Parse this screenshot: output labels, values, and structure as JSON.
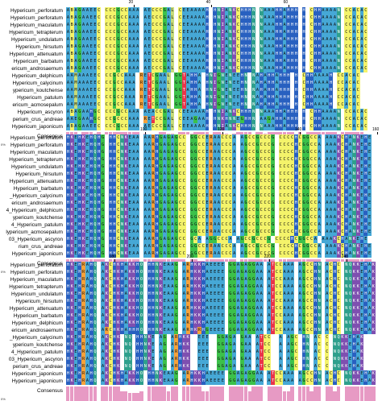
{
  "colors": {
    "A": "#46a8d6",
    "C": "#f4f36a",
    "G": "#3cc14a",
    "T": "#e8344a",
    "H": "#2860c0",
    "K": "#7e4fb0",
    "M": "#c7dc7a",
    "R": "#f6a23b",
    "N": "#2e9f8c",
    "conservation": "#e79ac4"
  },
  "consensus_label": "Consensus",
  "percent_label": "0%",
  "blocks": [
    {
      "ruler": [
        {
          "label": "20",
          "col": 17
        },
        {
          "label": "40",
          "col": 37
        },
        {
          "label": "60",
          "col": 57
        }
      ],
      "names": [
        "Hypericum_perforatum",
        "Hypericum_perforatum",
        "Hypericum_maculatum",
        "Hypericum_tetrapterum",
        "Hypericum_undulatum",
        "Hypericum_hirsutum",
        "Hypericum_attenuatum",
        "Hypericum_barbatum",
        "ericum_androsaemum",
        "Hypericum_delphicum",
        "Hypericum_calycinum",
        "ypericum_koutchense",
        "Hypericum_patulum",
        "ericum_acmosepalum",
        "Hypericum_ascyron",
        "perium_crus_andreae",
        "Hypericum_japonicum"
      ],
      "seqs": [
        "ABAGAAEEC CCCGCCAAA AECCCGAL CEEAAAAH HNIANKCHHHN NAAAHHAHHH H CHHAAAAN CCACAC",
        "ABAGAAEEC CCCGCCAAA AECCCGAL CEEAAAAH HNIANKCHHHN NAAAHHAHHH H CHHAAAAN CCACAC",
        "ABAGAAEEC CCCGCCAAA AECCCGAL CEEAAAAH HNIANKCHHHN NAAAHHAHHH H CHHAAAAN CCACAC",
        "ABAGAAEEC CCCGCCAAA AECCCGAL CEEAAAAH HNIANKCHHHN NAAAHHAHHH H CHHAAAAN CCACAC",
        "ABAGAAEEC CCCGCCAAA AECCCGAL CEEAAAAH HNIANKCHHHN NAAAHHAHHH H CHHAAAAN CCACAC",
        "ABAGAAEEC CCCGCCAAA AECCCGAL CEEAAAAH HNIANKCHHHN NAAAHHAHHH H CHHAAAAN CCACAC",
        "ABAGAAEEC CCCGCCAAA AECCCGAL CEEAAAAH HNIANKCHHHN NAAAHHAHHH H CHHAAAAN CCACAC",
        "ABAGAAEEC CCCGCCAAA AECCCGAL CEEAAAAH HNIANKCHHHN NAAAHHAHHH H CHHAAAAN CCACAC",
        "ABAGAAEEC CCCGCCAAA AECCCGAL CEEAAAAH HNIANKCHHHN NAAAHHAHHH H CHHAAAAN CCACAC",
        "AAMAAAEEC CCGCCAAA RETCGAAL GGTAHHA HNIGNENEEHN NAHAHHAHHH H CHHAAAAH CCACAC",
        "AAMAAAEEC CCGCCAAA RETCGAAL GGTAHHA HNIGNENEEHN NAHAHHAHHH H CHHAAAAH CCACAC",
        "AAMAAAEEC CCGCCAAA RETCGAAL GGTAHHA HNIGNENEEHN NAHAHHAHHH H CHHAAAAH CCACAC",
        "AAMAAAEEC CCGCCAAA RETCGAAL GGTAHHA HNIGNENEEHN NAHAHHAHHH H CHHAAAAH CCACAC",
        "AAMAAAEEC CCGCCAAA RETCGAAL GGTAHHA HNIGNENEEHN NAHAHHAHHH H CHHAAAAH CCACAC",
        "ABAGAAHGC CCCGCCAAA AEACCGAL CEEAAAAH HNIANKCHHHN NAAAHHAHHH H CHHAAAAN CCACAC",
        "AAEGAAHGC CCGCCCAAA RETCCGAL CEEAGAAH HNKHNNEGHHN AAGAHHAHHH H CHHAAAAN CCACAC",
        "ABAGAAEEC CCCGCCAAA AECCCGAL CEEAAAAH HNIANKCHHHN NAAAHHAHHH H CHHAAAAN CCACAC"
      ],
      "cons": [
        9,
        9,
        9,
        7,
        9,
        9,
        9,
        8,
        9,
        0,
        9,
        9,
        9,
        9,
        9,
        9,
        9,
        9,
        9,
        0,
        8,
        6,
        6,
        5,
        9,
        9,
        8,
        8,
        0,
        9,
        9,
        9,
        8,
        9,
        9,
        9,
        9,
        0,
        9,
        9,
        8,
        8,
        6,
        8,
        9,
        9,
        9,
        9,
        0,
        9,
        9,
        8,
        9,
        9,
        9,
        9,
        9,
        9,
        9,
        0,
        9,
        0,
        9,
        9,
        9,
        9,
        9,
        9,
        9,
        9,
        0,
        9,
        9,
        9,
        9,
        9,
        9
      ]
    },
    {
      "ruler": [
        {
          "label": "100",
          "col": 20
        },
        {
          "label": "120",
          "col": 40
        },
        {
          "label": "140",
          "col": 60
        },
        {
          "label": "160",
          "col": 80
        }
      ],
      "names": [
        "Hypericum_perforatum",
        "Hypericum_perforatum",
        "Hypericum_maculatum",
        "Hypericum_tetrapterum",
        "Hypericum_undulatum",
        "Hypericum_hirsutum",
        "Hypericum_attenuatum",
        "Hypericum_barbatum",
        "_Hypericum_calycinum",
        "ericum_androsaemum",
        "4_Hypericum_delphicum",
        "ypericum_koutchense",
        "4_Hypericum_patulum",
        "lypericum_acmosepalum",
        "03_Hypericum_ascyron",
        "rium_crus_andreae",
        "Hypericum_japonicum"
      ],
      "seqs": [
        "HKEHKEHQHG HHCNKEAA AARHGAGAGCC GGCCERAACCCA AGCCGCCCG CCCCHCGGCCA AAAKCHANKEHE",
        "HKEHKEHQHG HHCNKEAA AARHGAGAGCC GGCCERAACCCA AGCCGCCCG CCCCHCGGCCA AAAKCHANKEHE",
        "HKEHKEHQHG HHCNKEAA AARHGAGAGCC GGCCERAACCCA AGCCGCCCG CCCCHCGGCCA AAAKCHANKEHE",
        "HKEHKEHQHG HHCNKEAA AARHGAGAGCC GGCCERAACCCA AGCCGCCCG CCCCHCGGCCA AAAKCHANKEHE",
        "HKEHKEHQHG HHCNKEAA AARHGAGAGCC GGCCERAACCCA AGCCGCCCG CCCCHCGGCCA AAAKCHANKEHE",
        "HKEHKEHQHG HHCNKEAA AARHGAGAGCC GGCCERAACCCA AGCCGCCCG CCCCHCGGCCA AAAKCHANKEHE",
        "HKEHKEHQHG HHCNKEAA AARHGAGAGCC GGCCERAACCCA AGCCGCCCG CCCCHCGGCCA AAAKCHANKEHE",
        "HKEHKEHQHG HHCNKEAA AARHGAGAGCC GGCCERAACCCA AGCCGCCCG CCCCHCGGCCA AAAKCHANKEHE",
        "HKEHKEHQHG HHCNKEAA AARHGAGAGCC GGCCERAACCCA AGCCGCCCG CCCCHCGGCCA AAAKCHANKEHE",
        "HKEHKEHQHG HHCNKEAA AARHGAGAGCC GGCCERAACCCA AGCCGCCCG CCCCHCGGCCA AAAKCHANKEHE",
        "HKEHKEHQHG HHCNKEAA AARHGAGAGCC GGCCERAACCCA AGCCGCCCG CCCCHCGGCCA AAAKCHANKEHE",
        "HKEHKEHQHG HHCNKEAA AARHGAGAGCC GGCCERAACCCA AGCCGCCCG CCCCHCGGCCA AAAKCHANKEHE",
        "HKEHKEHQHG HHCNKEAA AARHGAGAGCC GGCCERAACCCA AGCCGCCCG CCCCHCGGCCA AAAKCHANKEHE",
        "HKEHKEHQHG HHCNKEAA AARHGAGAGCC GGCCERAACCCA AGCCGCCCG CCCCHCGGCCA AAAKCHANKEHE",
        "HKEHKEHQHG HHCNKEAA AARHGAGAGCC GCA AGGCCCA AGCCGCCCG CCCCHCGGCCA AAAKCHANKEHE",
        "HKEHKEHQHG HHCNKEAA AARHGAGAGCC GGCCERAACCCA AGCCGCCCG CCCCHCGGCCA AAAKCHANKEHE",
        "HKEHKEHQHG HHCNKEAA AARHGAGAGCC GGCCERAACCCA AGCCGCCCG CCCCHCGGCCA AAAKCHANKEHE"
      ],
      "cons": [
        9,
        9,
        9,
        9,
        9,
        9,
        9,
        9,
        9,
        9,
        0,
        9,
        9,
        9,
        9,
        9,
        9,
        9,
        9,
        0,
        9,
        9,
        9,
        9,
        9,
        9,
        9,
        9,
        9,
        9,
        9,
        0,
        9,
        9,
        8,
        8,
        9,
        9,
        9,
        9,
        9,
        9,
        9,
        9,
        0,
        9,
        9,
        9,
        9,
        9,
        9,
        9,
        9,
        9,
        0,
        9,
        9,
        9,
        9,
        9,
        9,
        9,
        9,
        9,
        9,
        9,
        0,
        9,
        9,
        9,
        9,
        9,
        9,
        9,
        9,
        9,
        9,
        9,
        9
      ]
    },
    {
      "ruler": [
        {
          "label": "180",
          "col": 12
        },
        {
          "label": "200",
          "col": 32
        },
        {
          "label": "220",
          "col": 52
        },
        {
          "label": "240",
          "col": 72
        }
      ],
      "names": [
        "Hypericum_perforatum",
        "Hypericum_perforatum",
        "Hypericum_maculatum",
        "Hypericum_tetrapterum",
        "Hypericum_undulatum",
        "Hypericum_hirsutum",
        "Hypericum_attenuatum",
        "Hypericum_barbatum",
        "Hypericum_delphicum",
        "ericum_androsaemum",
        "_Hypericum_calycinum",
        "ypericum_koutchense",
        "4_Hypericum_patulum",
        "03_Hypericum_ascyron",
        "perium_crus_andreae",
        "Hypericum_japonicum",
        "Hypericum_japonicum"
      ],
      "seqs": [
        "HKEHRAHQ AKCHKHAKKHO HHNKEAAG ARHKKHAEEEE GGAGAGGAA ATCCAAA AGCCHN ACHC NQKKEHAK",
        "HKEHRAHQ AKCHKHAKKHO HHNKEAAG ARHKKHAEEEE GGAGAGGAA ATCCAAA AGCCHN ACHC NQKKEHAK",
        "HKEHRAHQ AKCHKHAKKHO HHNKEAAG ARHKKHAEEEE GGAGAGGAA ATCCAAA AGCCHN ACHC NQKKEHAK",
        "HKEHRAHQ AKCHKHAKKHO HHNKEAAG ARHKKHAEEEE GGAGAGGAA ATCCAAA AGCCHN ACHC NQKKEHAK",
        "HKEHRAHQ AKCHKHAKKHO HHNKEAAG ARHKKHAEEEE GGAGAGGAA ATCCAAA AGCCHN ACHC NQKKEHAK",
        "HKEHRAHQ AKCHKHAKKHO HHNKEAAG ARHKKHAEEEE GGAGAGGAA ATCCAAA AGCCHN ACHC NQKKEHAK",
        "HKEHRAHQ AKCHKHAKKHO HHNKEAAG ARHKKHAEEEE GGAGAGGAA ATCCAAA AGCCHN ACHC NQKKEHAK",
        "HKEHRAHQ AKCHKHAKKHO HHNKEAAG ARHKKHAEEEE GGAGAGGAA ATCCAAA AGCCHN ACHC NQKKEHAK",
        "HKEHRAHQ AKCHKHAKKHO HHNKEAAG ARHKKHAEEEE GGAGAGGAA ATCCAAA AGCCHN ACHC NQKKEHAK",
        "HKEHRAHQ ARCHKHAHHHO HHNKEAAG ARHKRHGEEEE GGAGAGGAA ATCCAAA AGCCHN ACHC NQKKEHAK",
        "HKEHRAHQ AKCHK NQ HHNKE AG ARHKK  EEE  GGAGA GAA ATCC  A AGC HN AC C NQKKEHAK",
        "HKEHRAHQ AKCHK NQ HHNKE AG ARHKK  EEE  GGAGA GAA ATCC  A AGC HN AC C NQKKEHAK",
        "HKEHRAHQ AKCHK NQ HHNKE AG ARHKK  EEE  GGAGA GAA ATCC  A AGC HN AC C NQKKEHAK",
        "HKEHRAHQ AKCHK NQ HHNKE AG ARHKK  EEE  GGAGA GAA ATCC  A AGC HN AC C NQKKEHAK",
        "HKEHRAHQ AKCHK NQ HHNKE AG ARHKK  EEE  GGAGA GAA ATCC  A AGC HN AC C NQKKEHAK",
        "HKEHRAHQ AKCHKHAKKHO HHNKEAAG ARHKKHAEEEE GGAGAGGAA ATCCAAA AGCCHN ACHC NQKKEHAK",
        "HKEHRAHQ AKCHKHAKKHO HHNKEAAG ARHKKHAEEEE GGAGAGGAA ATCCAAA AGCCHN ACHC NQKKEHAK"
      ],
      "cons": [
        9,
        9,
        9,
        9,
        9,
        9,
        9,
        9,
        0,
        9,
        9,
        9,
        9,
        9,
        6,
        6,
        5,
        5,
        5,
        6,
        0,
        9,
        9,
        9,
        9,
        9,
        6,
        9,
        9,
        0,
        9,
        9,
        9,
        9,
        9,
        6,
        6,
        9,
        9,
        9,
        9,
        0,
        9,
        9,
        9,
        9,
        9,
        6,
        9,
        9,
        9,
        0,
        9,
        9,
        9,
        9,
        6,
        6,
        9,
        0,
        9,
        9,
        9,
        6,
        9,
        9,
        0,
        9,
        9,
        6,
        9,
        0,
        9,
        9,
        9,
        9,
        9,
        9,
        9,
        9
      ]
    }
  ]
}
